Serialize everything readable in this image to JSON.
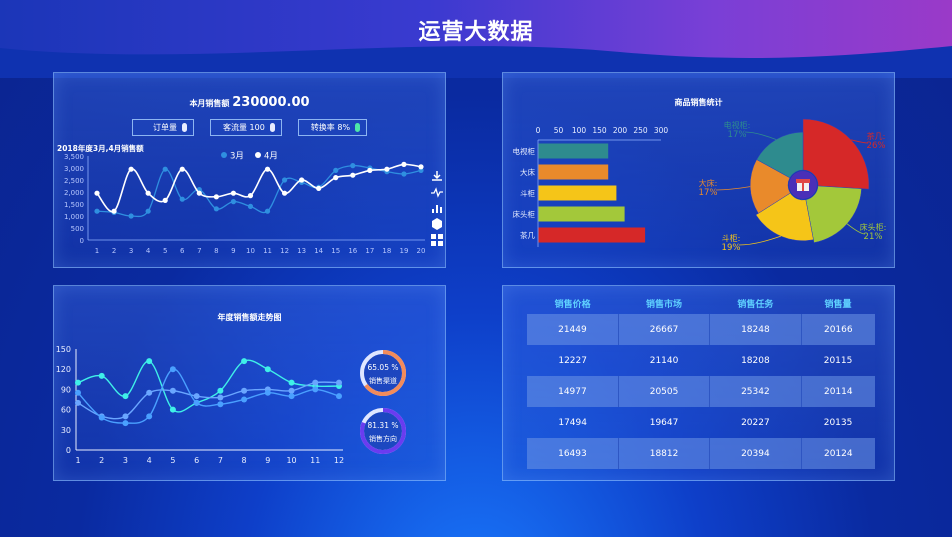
{
  "title": "运营大数据",
  "panel1": {
    "title_label": "本月销售额",
    "title_value": "230000.00",
    "stats": [
      {
        "label": "订单量",
        "icon": "white-pill-icon"
      },
      {
        "label": "客流量 100",
        "icon": "white-pill-icon"
      },
      {
        "label": "转换率 8%",
        "icon": "green-pill-icon"
      }
    ],
    "chart_data": {
      "type": "line",
      "title": "2018年度3月,4月销售额",
      "categories": [
        1,
        2,
        3,
        4,
        5,
        6,
        7,
        8,
        9,
        10,
        11,
        12,
        13,
        14,
        15,
        16,
        17,
        18,
        19,
        20
      ],
      "ylim": [
        0,
        3500
      ],
      "yticks": [
        "0",
        "500",
        "1,000",
        "1,500",
        "2,000",
        "2,500",
        "3,000",
        "3,500"
      ],
      "series": [
        {
          "name": "3月",
          "color": "#2f8fe0",
          "values": [
            1200,
            1150,
            1000,
            1200,
            2950,
            1700,
            2100,
            1300,
            1600,
            1400,
            1200,
            2500,
            2400,
            2200,
            2900,
            3100,
            3000,
            2850,
            2750,
            2900
          ]
        },
        {
          "name": "4月",
          "color": "#ffffff",
          "values": [
            1950,
            1200,
            2950,
            1950,
            1650,
            2950,
            1950,
            1800,
            1950,
            1850,
            2950,
            1950,
            2500,
            2150,
            2600,
            2700,
            2900,
            2950,
            3150,
            3050
          ]
        }
      ]
    },
    "side_icons": [
      "download-icon",
      "line-chart-icon",
      "bar-chart-icon",
      "hexagon-icon",
      "grid-icon"
    ]
  },
  "panel2": {
    "title": "商品销售统计",
    "bar_chart": {
      "type": "bar",
      "categories": [
        "电视柜",
        "大床",
        "斗柜",
        "床头柜",
        "茶几"
      ],
      "values": [
        170,
        170,
        190,
        210,
        260
      ],
      "colors": [
        "#2e8b8e",
        "#e98a2b",
        "#f5c518",
        "#a3c83a",
        "#d62828"
      ],
      "xlim": [
        0,
        300
      ],
      "xticks": [
        "0",
        "50",
        "100",
        "150",
        "200",
        "250",
        "300"
      ]
    },
    "pie_chart": {
      "type": "pie",
      "slices": [
        {
          "label": "茶几",
          "value": 26,
          "pct": "26%",
          "color": "#d62828"
        },
        {
          "label": "床头柜",
          "value": 21,
          "pct": "21%",
          "color": "#a3c83a"
        },
        {
          "label": "斗柜",
          "value": 19,
          "pct": "19%",
          "color": "#f5c518"
        },
        {
          "label": "大床",
          "value": 17,
          "pct": "17%",
          "color": "#e98a2b"
        },
        {
          "label": "电视柜",
          "value": 17,
          "pct": "17%",
          "color": "#2e8b8e"
        }
      ],
      "center_icon": "gift-icon"
    }
  },
  "panel3": {
    "title": "年度销售额走势图",
    "chart_data": {
      "type": "line",
      "categories": [
        1,
        2,
        3,
        4,
        5,
        6,
        7,
        8,
        9,
        10,
        11,
        12
      ],
      "ylim": [
        0,
        150
      ],
      "yticks": [
        "0",
        "30",
        "60",
        "90",
        "120",
        "150"
      ],
      "series": [
        {
          "color": "#3ff0e8",
          "values": [
            100,
            110,
            80,
            132,
            60,
            70,
            88,
            132,
            120,
            100,
            95,
            95
          ]
        },
        {
          "color": "#6aa6ff",
          "values": [
            70,
            50,
            50,
            85,
            88,
            80,
            78,
            88,
            90,
            88,
            100,
            100
          ]
        },
        {
          "color": "#4aa0ff",
          "values": [
            85,
            48,
            40,
            50,
            120,
            70,
            68,
            75,
            85,
            80,
            90,
            80
          ]
        }
      ]
    },
    "rings": [
      {
        "value": "65.05 %",
        "label": "销售渠道",
        "fraction": 0.6505,
        "color": "#f28b5a"
      },
      {
        "value": "81.31 %",
        "label": "销售方向",
        "fraction": 0.8131,
        "color": "#6a3cf0"
      }
    ]
  },
  "panel4": {
    "headers": [
      "销售价格",
      "销售市场",
      "销售任务",
      "销售量"
    ],
    "rows": [
      [
        "21449",
        "26667",
        "18248",
        "20166"
      ],
      [
        "12227",
        "21140",
        "18208",
        "20115"
      ],
      [
        "14977",
        "20505",
        "25342",
        "20114"
      ],
      [
        "17494",
        "19647",
        "20227",
        "20135"
      ],
      [
        "16493",
        "18812",
        "20394",
        "20124"
      ]
    ]
  }
}
